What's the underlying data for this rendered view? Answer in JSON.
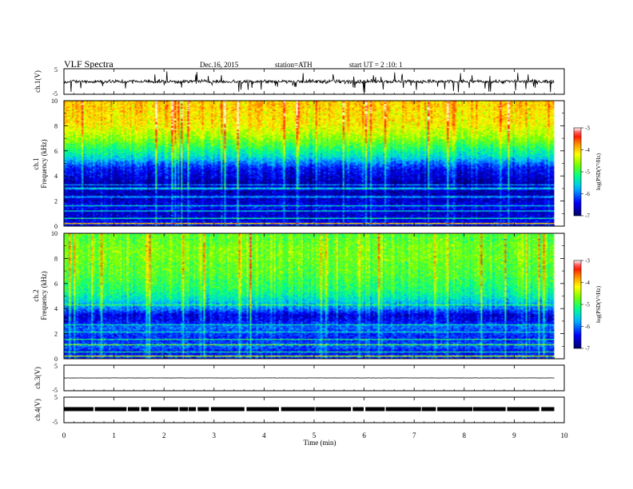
{
  "header": {
    "title": "VLF  Spectra",
    "date": "Dec.16, 2015",
    "station": "station=ATH",
    "start": "start  UT  =   2  :10: 1"
  },
  "x_axis": {
    "label": "Time  (min)",
    "ticks": [
      "0",
      "1",
      "2",
      "3",
      "4",
      "5",
      "6",
      "7",
      "8",
      "9",
      "10"
    ]
  },
  "panels": {
    "ch1_wave": {
      "label": "ch.1(V)",
      "ticks": [
        "5",
        "-5"
      ]
    },
    "ch1_spec": {
      "label_line1": "ch.1",
      "label_line2": "Frequency  (kHz)",
      "ticks": [
        "10",
        "8",
        "6",
        "4",
        "2",
        "0"
      ]
    },
    "ch2_spec": {
      "label_line1": "ch.2",
      "label_line2": "Frequency  (kHz)",
      "ticks": [
        "10",
        "8",
        "6",
        "4",
        "2",
        "0"
      ]
    },
    "ch3_wave": {
      "label": "ch.3(V)",
      "ticks": [
        "5",
        "-5"
      ]
    },
    "ch4_wave": {
      "label": "ch.4(V)",
      "ticks": [
        "5",
        "-5"
      ]
    }
  },
  "colorbar": {
    "label": "log(PSD(V²/Hz)",
    "ticks": [
      "-3",
      "-4",
      "-5",
      "-6",
      "-7"
    ],
    "colors": [
      "#000070",
      "#0000ff",
      "#00c0ff",
      "#00ff80",
      "#80ff00",
      "#ffff00",
      "#ff8000",
      "#ff0000",
      "#ffffff"
    ]
  },
  "chart_data": {
    "type": "heatmap",
    "x_range_min": [
      0,
      10
    ],
    "data_end_min": 9.8,
    "freq_range_khz": [
      0,
      10
    ],
    "wave_range_v": [
      -5,
      5
    ],
    "log_psd_range": [
      -7,
      -3
    ],
    "ch1_log_psd_profile": [
      {
        "f": 0.0,
        "v": -6.3
      },
      {
        "f": 0.5,
        "v": -6.5
      },
      {
        "f": 1.0,
        "v": -6.6
      },
      {
        "f": 1.5,
        "v": -6.4
      },
      {
        "f": 2.0,
        "v": -6.6
      },
      {
        "f": 2.5,
        "v": -6.7
      },
      {
        "f": 3.0,
        "v": -6.6
      },
      {
        "f": 3.5,
        "v": -6.7
      },
      {
        "f": 4.0,
        "v": -6.5
      },
      {
        "f": 4.5,
        "v": -6.4
      },
      {
        "f": 5.0,
        "v": -6.0
      },
      {
        "f": 5.5,
        "v": -5.5
      },
      {
        "f": 6.0,
        "v": -5.2
      },
      {
        "f": 6.5,
        "v": -4.9
      },
      {
        "f": 7.0,
        "v": -4.6
      },
      {
        "f": 7.5,
        "v": -4.4
      },
      {
        "f": 8.0,
        "v": -4.2
      },
      {
        "f": 8.5,
        "v": -4.1
      },
      {
        "f": 9.0,
        "v": -4.1
      },
      {
        "f": 9.5,
        "v": -4.0
      },
      {
        "f": 10.0,
        "v": -4.0
      }
    ],
    "ch2_log_psd_profile": [
      {
        "f": 0.0,
        "v": -6.2
      },
      {
        "f": 0.5,
        "v": -6.4
      },
      {
        "f": 1.0,
        "v": -6.0
      },
      {
        "f": 1.5,
        "v": -6.3
      },
      {
        "f": 2.0,
        "v": -6.2
      },
      {
        "f": 2.5,
        "v": -6.0
      },
      {
        "f": 3.0,
        "v": -6.4
      },
      {
        "f": 3.5,
        "v": -6.5
      },
      {
        "f": 4.0,
        "v": -5.9
      },
      {
        "f": 4.5,
        "v": -5.6
      },
      {
        "f": 5.0,
        "v": -5.3
      },
      {
        "f": 5.5,
        "v": -5.1
      },
      {
        "f": 6.0,
        "v": -5.0
      },
      {
        "f": 6.5,
        "v": -4.9
      },
      {
        "f": 7.0,
        "v": -4.8
      },
      {
        "f": 7.5,
        "v": -4.8
      },
      {
        "f": 8.0,
        "v": -4.7
      },
      {
        "f": 8.5,
        "v": -4.7
      },
      {
        "f": 9.0,
        "v": -4.7
      },
      {
        "f": 9.5,
        "v": -4.8
      },
      {
        "f": 10.0,
        "v": -4.8
      }
    ],
    "ch1_wave_baseline_v": 0,
    "ch3_wave_baseline_v": 0,
    "ch4_wave_baseline_v": 0
  }
}
